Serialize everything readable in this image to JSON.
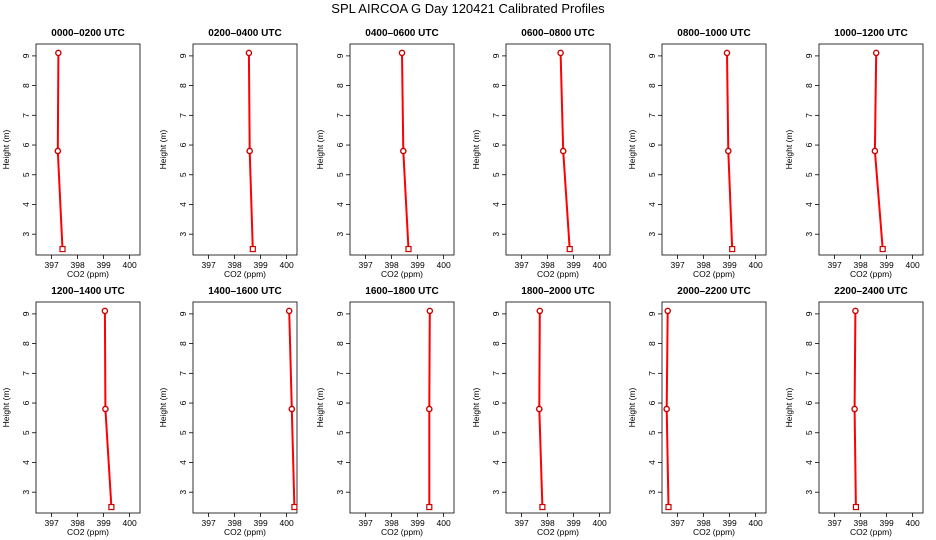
{
  "title": "SPL AIRCOA G  Day 120421  Calibrated Profiles",
  "chart_data": {
    "type": "line",
    "xlabel": "CO2 (ppm)",
    "ylabel": "Height (m)",
    "xlim": [
      396.4,
      400.4
    ],
    "ylim": [
      2.3,
      9.4
    ],
    "xticks": [
      397,
      398,
      399,
      400
    ],
    "yticks": [
      3,
      4,
      5,
      6,
      7,
      8,
      9
    ],
    "line_color": "#ff0000",
    "marker_color": "#cc0000",
    "grid": false,
    "panels": [
      {
        "title": "0000–0200 UTC",
        "points": [
          {
            "x": 397.26,
            "y": 9.1
          },
          {
            "x": 397.24,
            "y": 5.8
          },
          {
            "x": 397.42,
            "y": 2.5
          }
        ]
      },
      {
        "title": "0200–0400 UTC",
        "points": [
          {
            "x": 398.55,
            "y": 9.1
          },
          {
            "x": 398.58,
            "y": 5.8
          },
          {
            "x": 398.7,
            "y": 2.5
          }
        ]
      },
      {
        "title": "0400–0600 UTC",
        "points": [
          {
            "x": 398.4,
            "y": 9.1
          },
          {
            "x": 398.45,
            "y": 5.8
          },
          {
            "x": 398.65,
            "y": 2.5
          }
        ]
      },
      {
        "title": "0600–0800 UTC",
        "points": [
          {
            "x": 398.5,
            "y": 9.1
          },
          {
            "x": 398.6,
            "y": 5.8
          },
          {
            "x": 398.85,
            "y": 2.5
          }
        ]
      },
      {
        "title": "0800–1000 UTC",
        "points": [
          {
            "x": 398.9,
            "y": 9.1
          },
          {
            "x": 398.95,
            "y": 5.8
          },
          {
            "x": 399.1,
            "y": 2.5
          }
        ]
      },
      {
        "title": "1000–1200 UTC",
        "points": [
          {
            "x": 398.6,
            "y": 9.1
          },
          {
            "x": 398.55,
            "y": 5.8
          },
          {
            "x": 398.85,
            "y": 2.5
          }
        ]
      },
      {
        "title": "1200–1400 UTC",
        "points": [
          {
            "x": 399.05,
            "y": 9.1
          },
          {
            "x": 399.07,
            "y": 5.8
          },
          {
            "x": 399.3,
            "y": 2.5
          }
        ]
      },
      {
        "title": "1400–1600 UTC",
        "points": [
          {
            "x": 400.1,
            "y": 9.1
          },
          {
            "x": 400.2,
            "y": 5.8
          },
          {
            "x": 400.3,
            "y": 2.5
          }
        ]
      },
      {
        "title": "1600–1800 UTC",
        "points": [
          {
            "x": 399.47,
            "y": 9.1
          },
          {
            "x": 399.45,
            "y": 5.8
          },
          {
            "x": 399.45,
            "y": 2.5
          }
        ]
      },
      {
        "title": "1800–2000 UTC",
        "points": [
          {
            "x": 397.7,
            "y": 9.1
          },
          {
            "x": 397.68,
            "y": 5.8
          },
          {
            "x": 397.8,
            "y": 2.5
          }
        ]
      },
      {
        "title": "2000–2200 UTC",
        "points": [
          {
            "x": 396.62,
            "y": 9.1
          },
          {
            "x": 396.58,
            "y": 5.8
          },
          {
            "x": 396.65,
            "y": 2.5
          }
        ]
      },
      {
        "title": "2200–2400 UTC",
        "points": [
          {
            "x": 397.8,
            "y": 9.1
          },
          {
            "x": 397.77,
            "y": 5.8
          },
          {
            "x": 397.82,
            "y": 2.5
          }
        ]
      }
    ]
  }
}
